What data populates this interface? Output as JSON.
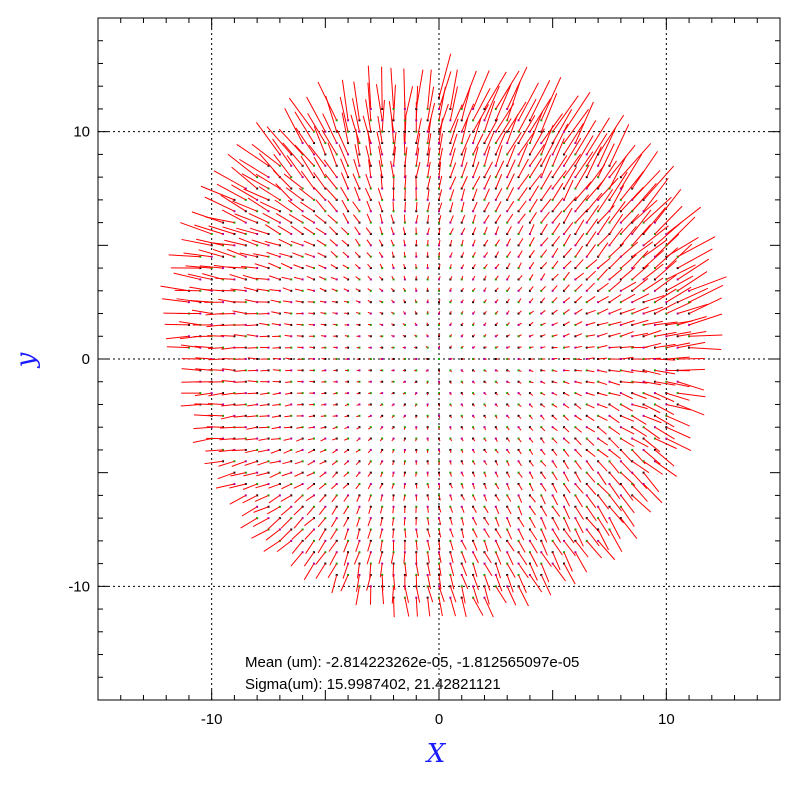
{
  "chart_data": {
    "type": "scatter",
    "subtype": "vector-field",
    "xlabel": "X",
    "ylabel": "y",
    "xlim": [
      -15,
      15
    ],
    "ylim": [
      -15,
      15
    ],
    "xticks": [
      -10,
      0,
      10
    ],
    "yticks": [
      -10,
      0,
      10
    ],
    "grid": true,
    "grid_values": [
      -10,
      0,
      10
    ],
    "field": {
      "domain": "disk",
      "center": [
        0,
        0
      ],
      "radius": 11.5,
      "grid_step": 0.5,
      "vector_model": "radial outward, growing with radius, strongest at upper and right edges",
      "markers": "tiny dots (green/purple/black) at each sample point"
    },
    "annotations": [
      "Mean (um): -2.814223262e-05, -1.812565097e-05",
      "Sigma(um): 15.9987402, 21.42821121"
    ],
    "colors": {
      "vectors": "#ff0000",
      "points": [
        "#00b000",
        "#a000c0",
        "#000000"
      ],
      "axis_title": "#1a1aff",
      "grid": "#000000"
    }
  }
}
